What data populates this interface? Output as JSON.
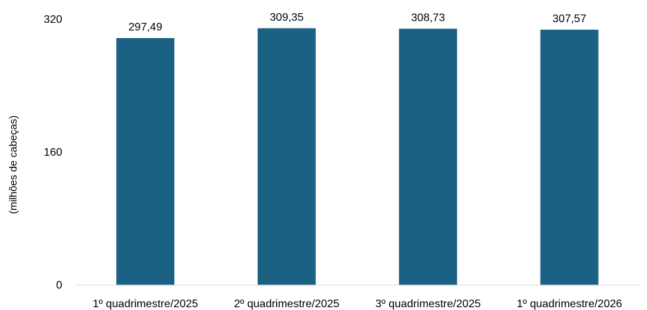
{
  "chart_data": {
    "type": "bar",
    "title": "",
    "xlabel": "",
    "ylabel": "(milhões de cabeças)",
    "categories": [
      "1º quadrimestre/2025",
      "2º quadrimestre/2025",
      "3º quadrimestre/2025",
      "1º quadrimestre/2026"
    ],
    "values": [
      297.49,
      309.35,
      308.73,
      307.57
    ],
    "value_labels": [
      "297,49",
      "309,35",
      "308,73",
      "307,57"
    ],
    "ylim": [
      0,
      320
    ],
    "yticks": [
      0,
      160,
      320
    ],
    "ytick_labels": [
      "0",
      "160",
      "320"
    ],
    "grid": false,
    "legend": "none",
    "bar_color": "#1a6184"
  }
}
